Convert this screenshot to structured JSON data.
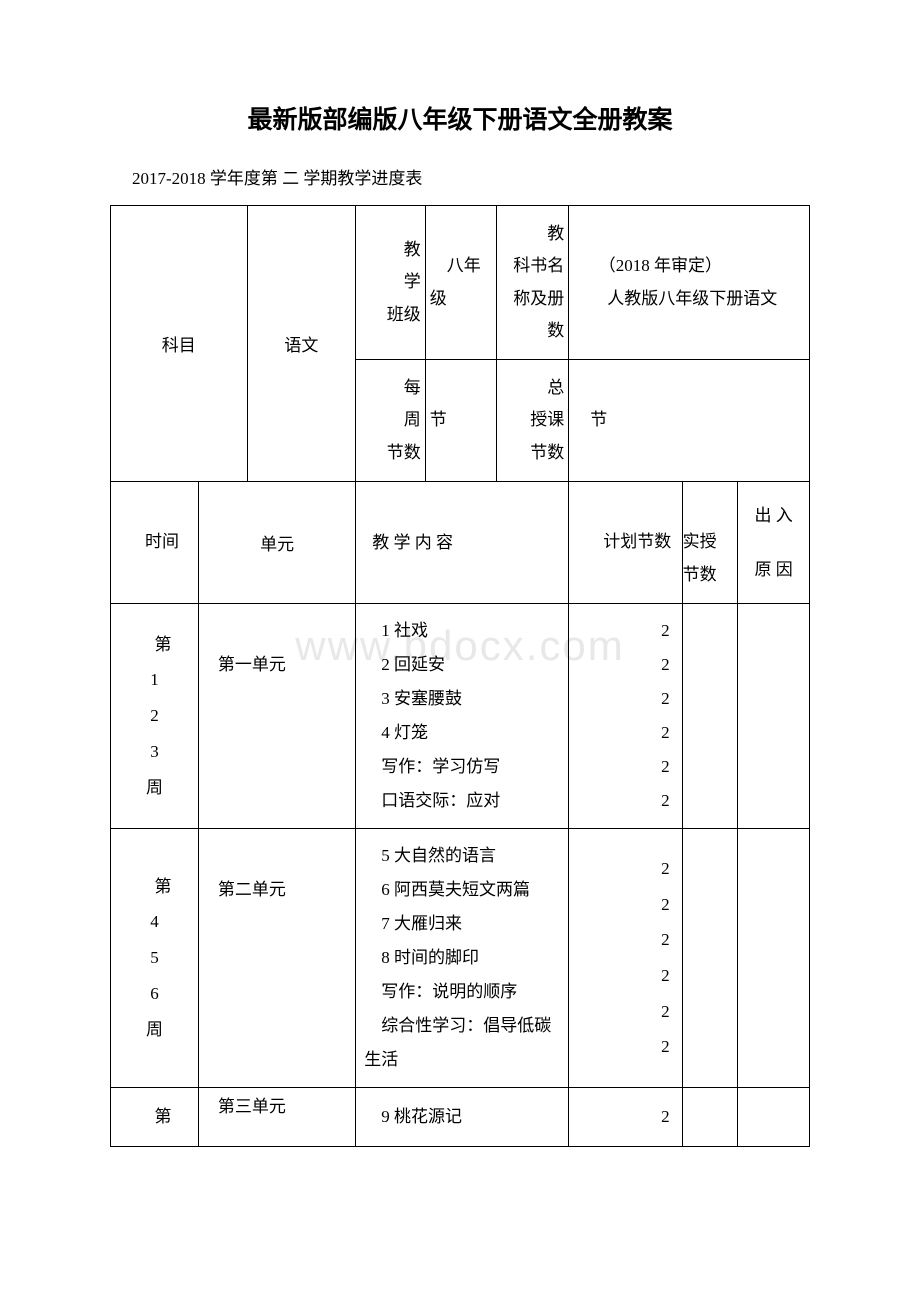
{
  "colors": {
    "text": "#000000",
    "bg": "#ffffff",
    "border": "#000000",
    "watermark": "#e8e8e8"
  },
  "title": "最新版部编版八年级下册语文全册教案",
  "subtitle": "2017-2018 学年度第 二 学期教学进度表",
  "watermark": "www.bdocx.com",
  "header": {
    "subject_label": "科目",
    "subject_value": "语文",
    "class_label": "　　教学　　班级",
    "class_value": "　八年级",
    "book_label": "　　教科书名称及册数",
    "book_value": "　　（2018 年审定）\n　　人教版八年级下册语文",
    "weekly_label": "　　每周　　节数",
    "weekly_value": "节",
    "total_label": "　　总授课　　节数",
    "total_value": "　节"
  },
  "row2": {
    "time": "　　时间",
    "unit": "单元",
    "content": "教 学 内 容",
    "plan": "　　计划节数",
    "actual": "　　实授节数",
    "reason": "出 入\n\n原 因"
  },
  "blocks": [
    {
      "time": "　第\n1\n2\n3\n周",
      "unit": "　第一单元",
      "content": "　1 社戏\n　2 回延安\n　3 安塞腰鼓\n　4 灯笼\n　写作：学习仿写\n　口语交际：应对",
      "plan": "2\n2\n2\n2\n2\n2"
    },
    {
      "time": "　第\n4\n5\n6\n周",
      "unit": "　第二单元",
      "content": "　5 大自然的语言\n　6 阿西莫夫短文两篇\n　7 大雁归来\n　8 时间的脚印\n　写作：说明的顺序\n　综合性学习：倡导低碳生活",
      "plan": "2\n2\n2\n2\n2\n2"
    },
    {
      "time": "　第",
      "unit": "　第三单元",
      "content": "　9 桃花源记",
      "plan": "2"
    }
  ]
}
